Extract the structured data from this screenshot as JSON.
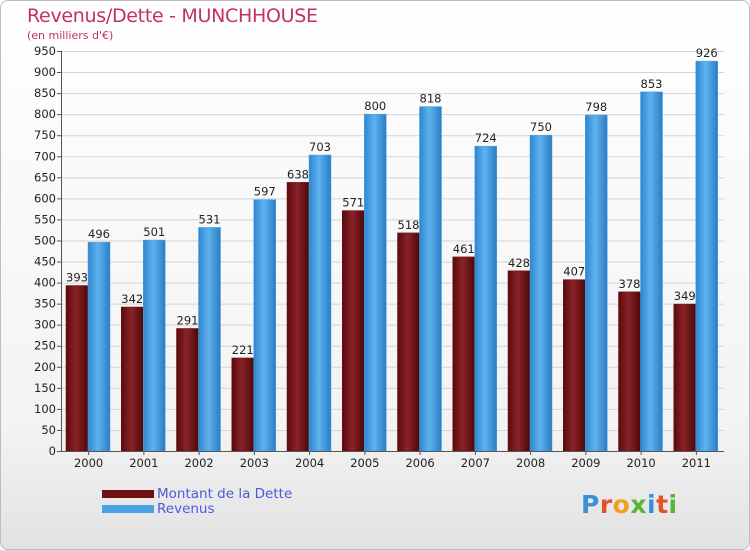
{
  "header": {
    "title": "Revenus/Dette - MUNCHHOUSE",
    "subtitle": "(en milliers d'€)"
  },
  "colors": {
    "dette": "#6e0f12",
    "revenus": "#4aa3e6",
    "title": "#c4305f",
    "legend_text": "#4a5bdc"
  },
  "legend": {
    "dette_label": "Montant de la Dette",
    "revenus_label": "Revenus"
  },
  "logo": {
    "text": "Proxiti"
  },
  "chart_data": {
    "type": "bar",
    "title": "Revenus/Dette - MUNCHHOUSE",
    "ylabel": "(en milliers d'€)",
    "xlabel": "",
    "categories": [
      "2000",
      "2001",
      "2002",
      "2003",
      "2004",
      "2005",
      "2006",
      "2007",
      "2008",
      "2009",
      "2010",
      "2011"
    ],
    "series": [
      {
        "name": "Montant de la Dette",
        "values": [
          393,
          342,
          291,
          221,
          638,
          571,
          518,
          461,
          428,
          407,
          378,
          349
        ]
      },
      {
        "name": "Revenus",
        "values": [
          496,
          501,
          531,
          597,
          703,
          800,
          818,
          724,
          750,
          798,
          853,
          926
        ]
      }
    ],
    "ylim": [
      0,
      950
    ],
    "yticks": [
      0,
      50,
      100,
      150,
      200,
      250,
      300,
      350,
      400,
      450,
      500,
      550,
      600,
      650,
      700,
      750,
      800,
      850,
      900,
      950
    ],
    "grid": true,
    "legend_position": "bottom-left"
  }
}
